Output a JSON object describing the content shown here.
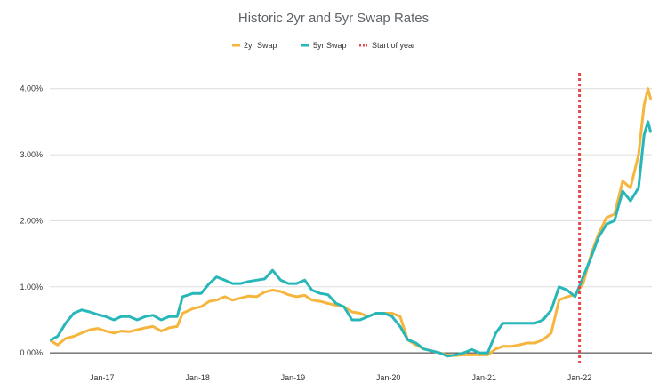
{
  "chart_data": {
    "type": "line",
    "title": "Historic 2yr and 5yr Swap Rates",
    "xlabel": "",
    "ylabel": "",
    "ylim": [
      -0.2,
      4.4
    ],
    "xlim": [
      "2016-06-15",
      "2022-10-05"
    ],
    "y_ticks": [
      0,
      1,
      2,
      3,
      4
    ],
    "y_tick_labels": [
      "0.00%",
      "1.00%",
      "2.00%",
      "3.00%",
      "4.00%"
    ],
    "x_ticks": [
      "2017-01-01",
      "2018-01-01",
      "2019-01-01",
      "2020-01-01",
      "2021-01-01",
      "2022-01-01"
    ],
    "x_tick_labels": [
      "Jan-17",
      "Jan-18",
      "Jan-19",
      "Jan-20",
      "Jan-21",
      "Jan-22"
    ],
    "grid": true,
    "legend_position": "top-center",
    "legend": [
      "2yr Swap",
      "5yr Swap",
      "Start of year"
    ],
    "vertical_line": {
      "name": "Start of year",
      "x": "2022-01-01",
      "color": "#e8474c"
    },
    "series": [
      {
        "name": "2yr Swap",
        "color": "#f6b53d",
        "points": [
          [
            "2016-06-20",
            0.18
          ],
          [
            "2016-07-15",
            0.12
          ],
          [
            "2016-08-15",
            0.22
          ],
          [
            "2016-09-15",
            0.25
          ],
          [
            "2016-10-15",
            0.3
          ],
          [
            "2016-11-15",
            0.35
          ],
          [
            "2016-12-15",
            0.37
          ],
          [
            "2017-01-15",
            0.33
          ],
          [
            "2017-02-15",
            0.3
          ],
          [
            "2017-03-15",
            0.33
          ],
          [
            "2017-04-15",
            0.32
          ],
          [
            "2017-05-15",
            0.35
          ],
          [
            "2017-06-15",
            0.38
          ],
          [
            "2017-07-15",
            0.4
          ],
          [
            "2017-08-15",
            0.33
          ],
          [
            "2017-09-15",
            0.38
          ],
          [
            "2017-10-15",
            0.4
          ],
          [
            "2017-11-05",
            0.6
          ],
          [
            "2017-12-15",
            0.67
          ],
          [
            "2018-01-15",
            0.7
          ],
          [
            "2018-02-15",
            0.78
          ],
          [
            "2018-03-15",
            0.8
          ],
          [
            "2018-04-15",
            0.85
          ],
          [
            "2018-05-15",
            0.8
          ],
          [
            "2018-06-15",
            0.83
          ],
          [
            "2018-07-15",
            0.86
          ],
          [
            "2018-08-15",
            0.85
          ],
          [
            "2018-09-15",
            0.92
          ],
          [
            "2018-10-15",
            0.95
          ],
          [
            "2018-11-15",
            0.93
          ],
          [
            "2018-12-15",
            0.88
          ],
          [
            "2019-01-15",
            0.85
          ],
          [
            "2019-02-15",
            0.87
          ],
          [
            "2019-03-15",
            0.8
          ],
          [
            "2019-04-15",
            0.78
          ],
          [
            "2019-05-15",
            0.75
          ],
          [
            "2019-06-15",
            0.72
          ],
          [
            "2019-07-15",
            0.7
          ],
          [
            "2019-08-15",
            0.62
          ],
          [
            "2019-09-15",
            0.6
          ],
          [
            "2019-10-15",
            0.55
          ],
          [
            "2019-11-15",
            0.6
          ],
          [
            "2019-12-15",
            0.6
          ],
          [
            "2020-01-15",
            0.6
          ],
          [
            "2020-02-15",
            0.55
          ],
          [
            "2020-03-15",
            0.2
          ],
          [
            "2020-04-15",
            0.12
          ],
          [
            "2020-05-15",
            0.06
          ],
          [
            "2020-06-15",
            0.03
          ],
          [
            "2020-07-15",
            0.0
          ],
          [
            "2020-08-15",
            -0.03
          ],
          [
            "2020-09-15",
            -0.04
          ],
          [
            "2020-10-15",
            -0.03
          ],
          [
            "2020-11-15",
            -0.03
          ],
          [
            "2020-12-15",
            -0.03
          ],
          [
            "2021-01-15",
            -0.03
          ],
          [
            "2021-02-15",
            0.06
          ],
          [
            "2021-03-15",
            0.1
          ],
          [
            "2021-04-15",
            0.1
          ],
          [
            "2021-05-15",
            0.12
          ],
          [
            "2021-06-15",
            0.15
          ],
          [
            "2021-07-15",
            0.15
          ],
          [
            "2021-08-15",
            0.2
          ],
          [
            "2021-09-15",
            0.3
          ],
          [
            "2021-10-15",
            0.8
          ],
          [
            "2021-11-15",
            0.85
          ],
          [
            "2021-12-15",
            0.88
          ],
          [
            "2022-01-15",
            1.05
          ],
          [
            "2022-02-15",
            1.5
          ],
          [
            "2022-03-15",
            1.8
          ],
          [
            "2022-04-15",
            2.05
          ],
          [
            "2022-05-15",
            2.1
          ],
          [
            "2022-06-15",
            2.6
          ],
          [
            "2022-07-15",
            2.5
          ],
          [
            "2022-08-15",
            3.0
          ],
          [
            "2022-09-05",
            3.75
          ],
          [
            "2022-09-20",
            4.0
          ],
          [
            "2022-09-30",
            3.85
          ]
        ]
      },
      {
        "name": "5yr Swap",
        "color": "#28b7b9",
        "points": [
          [
            "2016-06-20",
            0.2
          ],
          [
            "2016-07-15",
            0.25
          ],
          [
            "2016-08-15",
            0.45
          ],
          [
            "2016-09-15",
            0.6
          ],
          [
            "2016-10-15",
            0.65
          ],
          [
            "2016-11-15",
            0.62
          ],
          [
            "2016-12-15",
            0.58
          ],
          [
            "2017-01-15",
            0.55
          ],
          [
            "2017-02-15",
            0.5
          ],
          [
            "2017-03-15",
            0.55
          ],
          [
            "2017-04-15",
            0.55
          ],
          [
            "2017-05-15",
            0.5
          ],
          [
            "2017-06-15",
            0.55
          ],
          [
            "2017-07-15",
            0.57
          ],
          [
            "2017-08-15",
            0.5
          ],
          [
            "2017-09-15",
            0.55
          ],
          [
            "2017-10-15",
            0.55
          ],
          [
            "2017-11-05",
            0.85
          ],
          [
            "2017-12-15",
            0.9
          ],
          [
            "2018-01-15",
            0.9
          ],
          [
            "2018-02-15",
            1.05
          ],
          [
            "2018-03-15",
            1.15
          ],
          [
            "2018-04-15",
            1.1
          ],
          [
            "2018-05-15",
            1.05
          ],
          [
            "2018-06-15",
            1.05
          ],
          [
            "2018-07-15",
            1.08
          ],
          [
            "2018-08-15",
            1.1
          ],
          [
            "2018-09-15",
            1.12
          ],
          [
            "2018-10-15",
            1.25
          ],
          [
            "2018-11-15",
            1.1
          ],
          [
            "2018-12-15",
            1.05
          ],
          [
            "2019-01-15",
            1.05
          ],
          [
            "2019-02-15",
            1.1
          ],
          [
            "2019-03-15",
            0.95
          ],
          [
            "2019-04-15",
            0.9
          ],
          [
            "2019-05-15",
            0.88
          ],
          [
            "2019-06-15",
            0.75
          ],
          [
            "2019-07-15",
            0.7
          ],
          [
            "2019-08-15",
            0.5
          ],
          [
            "2019-09-15",
            0.5
          ],
          [
            "2019-10-15",
            0.55
          ],
          [
            "2019-11-15",
            0.6
          ],
          [
            "2019-12-15",
            0.6
          ],
          [
            "2020-01-15",
            0.55
          ],
          [
            "2020-02-15",
            0.4
          ],
          [
            "2020-03-15",
            0.2
          ],
          [
            "2020-04-15",
            0.15
          ],
          [
            "2020-05-15",
            0.06
          ],
          [
            "2020-06-15",
            0.03
          ],
          [
            "2020-07-15",
            0.0
          ],
          [
            "2020-08-15",
            -0.05
          ],
          [
            "2020-09-15",
            -0.03
          ],
          [
            "2020-10-15",
            0.0
          ],
          [
            "2020-11-15",
            0.05
          ],
          [
            "2020-12-15",
            0.0
          ],
          [
            "2021-01-15",
            0.0
          ],
          [
            "2021-02-15",
            0.3
          ],
          [
            "2021-03-15",
            0.45
          ],
          [
            "2021-04-15",
            0.45
          ],
          [
            "2021-05-15",
            0.45
          ],
          [
            "2021-06-15",
            0.45
          ],
          [
            "2021-07-15",
            0.45
          ],
          [
            "2021-08-15",
            0.5
          ],
          [
            "2021-09-15",
            0.65
          ],
          [
            "2021-10-15",
            1.0
          ],
          [
            "2021-11-15",
            0.95
          ],
          [
            "2021-12-15",
            0.85
          ],
          [
            "2022-01-15",
            1.15
          ],
          [
            "2022-02-15",
            1.45
          ],
          [
            "2022-03-15",
            1.75
          ],
          [
            "2022-04-15",
            1.95
          ],
          [
            "2022-05-15",
            2.0
          ],
          [
            "2022-06-15",
            2.45
          ],
          [
            "2022-07-15",
            2.3
          ],
          [
            "2022-08-15",
            2.5
          ],
          [
            "2022-09-05",
            3.3
          ],
          [
            "2022-09-20",
            3.5
          ],
          [
            "2022-09-30",
            3.35
          ]
        ]
      }
    ]
  }
}
